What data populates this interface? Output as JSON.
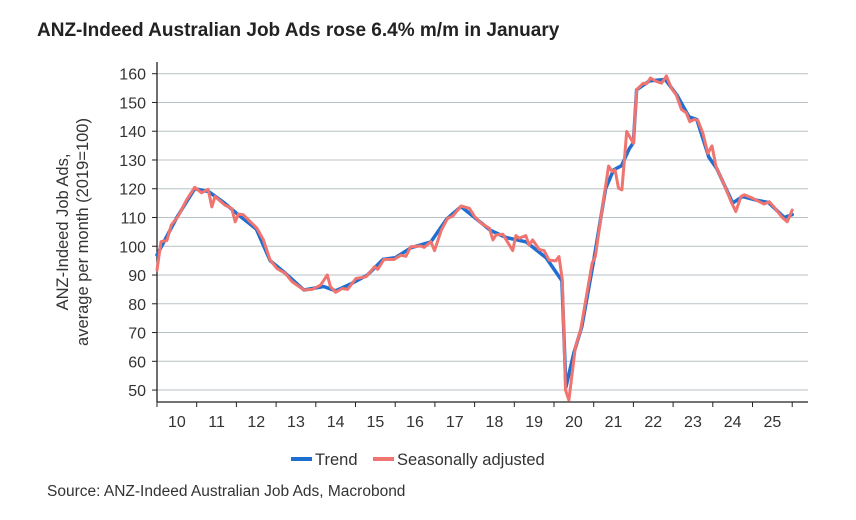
{
  "chart_data": {
    "type": "line",
    "title": "ANZ-Indeed Australian Job Ads rose 6.4% m/m in January",
    "ylabel_lines": [
      "ANZ-Indeed Job Ads,",
      "average per month (2019=100)"
    ],
    "xlabel": "",
    "ylim": [
      50,
      160
    ],
    "xlim": [
      2010,
      2026.4
    ],
    "yticks": [
      50,
      60,
      70,
      80,
      90,
      100,
      110,
      120,
      130,
      140,
      150,
      160
    ],
    "xtick_labels": [
      "10",
      "11",
      "12",
      "13",
      "14",
      "15",
      "16",
      "17",
      "18",
      "19",
      "20",
      "21",
      "22",
      "23",
      "24",
      "25"
    ],
    "grid": true,
    "legend_position": "bottom-center",
    "source": "Source: ANZ-Indeed Australian Job Ads, Macrobond",
    "series": [
      {
        "name": "Trend",
        "color": "#1f6fd0",
        "x": [
          2010.0,
          2010.5,
          2010.95,
          2011.3,
          2011.7,
          2012.0,
          2012.5,
          2012.85,
          2013.2,
          2013.7,
          2014.2,
          2014.5,
          2014.9,
          2015.3,
          2015.7,
          2016.0,
          2016.4,
          2016.9,
          2017.3,
          2017.66,
          2018.0,
          2018.4,
          2018.8,
          2019.3,
          2019.8,
          2020.2,
          2020.3,
          2020.5,
          2020.7,
          2021.0,
          2021.3,
          2021.5,
          2021.7,
          2021.9,
          2022.0,
          2022.08,
          2022.4,
          2022.8,
          2023.1,
          2023.4,
          2023.6,
          2023.9,
          2024.1,
          2024.5,
          2024.75,
          2025.1,
          2025.4,
          2025.8,
          2026.0
        ],
        "y": [
          97,
          110,
          120,
          119,
          115,
          111.5,
          106,
          95,
          91,
          84.8,
          86,
          84.5,
          87,
          90,
          95.5,
          96,
          99.5,
          101.5,
          109.5,
          113.8,
          110,
          105.5,
          103,
          101.5,
          96,
          88,
          51,
          63,
          72,
          95,
          120,
          126.5,
          128,
          134,
          136,
          154.4,
          157.5,
          158,
          152.5,
          145,
          144,
          131,
          127,
          115,
          117.3,
          116,
          115.2,
          110,
          111
        ]
      },
      {
        "name": "Seasonally adjusted",
        "color": "#f07470",
        "x": [
          2010.0,
          2010.1,
          2010.25,
          2010.36,
          2010.53,
          2010.74,
          2010.95,
          2011.12,
          2011.29,
          2011.38,
          2011.46,
          2011.71,
          2011.88,
          2011.97,
          2012.05,
          2012.18,
          2012.52,
          2012.68,
          2012.85,
          2013.02,
          2013.23,
          2013.4,
          2013.7,
          2013.91,
          2014.12,
          2014.29,
          2014.37,
          2014.5,
          2014.67,
          2014.8,
          2015.01,
          2015.27,
          2015.48,
          2015.56,
          2015.72,
          2015.97,
          2016.14,
          2016.27,
          2016.39,
          2016.65,
          2016.73,
          2016.9,
          2016.99,
          2017.16,
          2017.32,
          2017.45,
          2017.66,
          2017.87,
          2018.0,
          2018.17,
          2018.375,
          2018.46,
          2018.54,
          2018.71,
          2018.96,
          2019.04,
          2019.125,
          2019.29,
          2019.375,
          2019.46,
          2019.625,
          2019.75,
          2019.875,
          2020.04,
          2020.125,
          2020.21,
          2020.29,
          2020.375,
          2020.54,
          2020.67,
          2020.96,
          2021.04,
          2021.21,
          2021.375,
          2021.46,
          2021.54,
          2021.625,
          2021.71,
          2021.83,
          2022.0,
          2022.08,
          2022.25,
          2022.33,
          2022.43,
          2022.58,
          2022.71,
          2022.83,
          2022.96,
          2023.08,
          2023.21,
          2023.33,
          2023.42,
          2023.54,
          2023.625,
          2023.75,
          2023.875,
          2023.98,
          2024.08,
          2024.29,
          2024.46,
          2024.58,
          2024.71,
          2024.79,
          2025.0,
          2025.17,
          2025.29,
          2025.42,
          2025.54,
          2025.75,
          2025.875,
          2026.0
        ],
        "y": [
          91.7,
          101.6,
          102,
          107.4,
          110.3,
          116,
          120.5,
          118.6,
          119.8,
          113.7,
          117.3,
          114.3,
          113.2,
          108.5,
          111.2,
          110.9,
          106.2,
          102.2,
          95.2,
          92.3,
          90.6,
          87.7,
          84.8,
          85,
          86.5,
          90,
          85.9,
          84,
          85.3,
          85,
          88.8,
          89.4,
          92.9,
          92,
          95.5,
          95.4,
          96.9,
          96.5,
          99.8,
          100.1,
          99.6,
          101.6,
          98.5,
          105.6,
          109.7,
          110.5,
          114,
          113.2,
          110.3,
          108,
          106.2,
          102.2,
          103.9,
          104.2,
          98.5,
          103.7,
          102.8,
          103.7,
          100.4,
          102.2,
          98.9,
          98.5,
          95.2,
          94.9,
          96.4,
          88.3,
          50,
          46.5,
          65,
          70.9,
          94.1,
          96.4,
          112.6,
          127.9,
          126,
          126.5,
          120.2,
          119.6,
          139.9,
          135.8,
          154.4,
          156.7,
          156.5,
          158.5,
          157.3,
          156.7,
          159.2,
          154.9,
          152.6,
          147.6,
          146.4,
          143.3,
          144.1,
          143.7,
          139.3,
          132.3,
          134.9,
          127.7,
          121.3,
          115.5,
          112.1,
          117.3,
          117.9,
          116.7,
          115.5,
          114.7,
          115.5,
          113.7,
          110,
          108.5,
          112.6
        ]
      }
    ]
  }
}
